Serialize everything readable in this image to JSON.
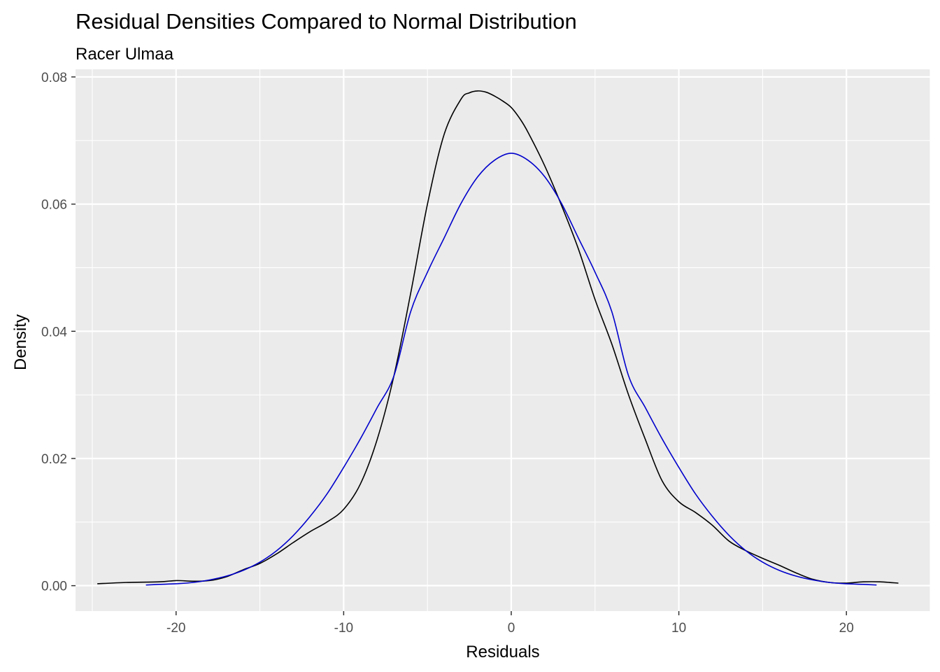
{
  "chart_data": {
    "type": "line",
    "title": "Residual Densities Compared to Normal Distribution",
    "subtitle": "Racer Ulmaa",
    "xlabel": "Residuals",
    "ylabel": "Density",
    "xlim": [
      -26,
      25
    ],
    "ylim": [
      -0.004,
      0.0812
    ],
    "x_ticks": [
      -20,
      -10,
      0,
      10,
      20
    ],
    "x_tick_labels": [
      "-20",
      "-10",
      "0",
      "10",
      "20"
    ],
    "y_ticks": [
      0.0,
      0.02,
      0.04,
      0.06,
      0.08
    ],
    "y_tick_labels": [
      "0.00",
      "0.02",
      "0.04",
      "0.06",
      "0.08"
    ],
    "grid": true,
    "panel_background": "#ebebeb",
    "grid_color": "#ffffff",
    "legend": "none",
    "series": [
      {
        "color": "#000000",
        "x": [
          -24.7,
          -23,
          -21,
          -20,
          -19,
          -18,
          -17,
          -16,
          -15,
          -14,
          -13,
          -12,
          -11,
          -10,
          -9,
          -8,
          -7,
          -6,
          -5,
          -4,
          -3,
          -2.5,
          -2,
          -1.5,
          -1,
          -0.5,
          0,
          0.5,
          1,
          2,
          3,
          4,
          5,
          6,
          7,
          8,
          9,
          10,
          11,
          12,
          13,
          14,
          15,
          16,
          17,
          18,
          19,
          20,
          21,
          22,
          23.1
        ],
        "y": [
          0.0003,
          0.0005,
          0.0006,
          0.0008,
          0.0007,
          0.0008,
          0.0014,
          0.0025,
          0.0035,
          0.005,
          0.0068,
          0.0085,
          0.01,
          0.012,
          0.016,
          0.023,
          0.033,
          0.046,
          0.06,
          0.071,
          0.0765,
          0.0775,
          0.0778,
          0.0776,
          0.077,
          0.0762,
          0.0752,
          0.0735,
          0.0713,
          0.066,
          0.0598,
          0.053,
          0.045,
          0.038,
          0.03,
          0.023,
          0.0165,
          0.0132,
          0.0115,
          0.0095,
          0.007,
          0.0055,
          0.0043,
          0.0032,
          0.002,
          0.001,
          0.0005,
          0.0004,
          0.0006,
          0.0006,
          0.0004
        ]
      },
      {
        "color": "#0000cc",
        "x": [
          -21.8,
          -21,
          -20,
          -19,
          -18,
          -17,
          -16,
          -15,
          -14,
          -13,
          -12,
          -11,
          -10,
          -9,
          -8,
          -7,
          -6,
          -5,
          -4,
          -3,
          -2,
          -1,
          0,
          1,
          2,
          3,
          4,
          5,
          6,
          7,
          8,
          9,
          10,
          11,
          12,
          13,
          14,
          15,
          16,
          17,
          18,
          19,
          20,
          21,
          21.8
        ],
        "y": [
          0.0001,
          0.0002,
          0.0003,
          0.0005,
          0.0009,
          0.0015,
          0.0024,
          0.0037,
          0.0055,
          0.0079,
          0.0109,
          0.0144,
          0.0186,
          0.0231,
          0.028,
          0.033,
          0.0431,
          0.0493,
          0.0547,
          0.0601,
          0.0643,
          0.0669,
          0.068,
          0.0669,
          0.0643,
          0.0601,
          0.0547,
          0.0493,
          0.0431,
          0.033,
          0.028,
          0.0231,
          0.0186,
          0.0144,
          0.0109,
          0.0079,
          0.0055,
          0.0037,
          0.0024,
          0.0015,
          0.0009,
          0.0005,
          0.0003,
          0.0002,
          0.0001
        ]
      }
    ]
  }
}
